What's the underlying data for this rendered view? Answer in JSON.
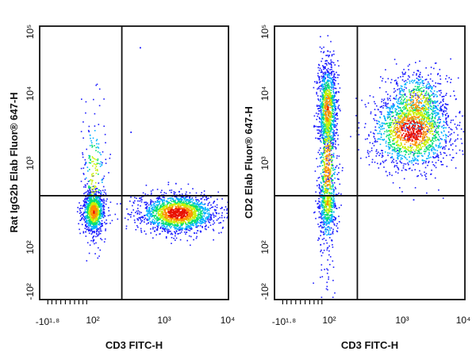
{
  "chart_data": [
    {
      "type": "scatter",
      "xlabel": "CD3 FITC-H",
      "ylabel": "Rat IgG2b Elab Fluor® 647-H",
      "x_scale": "biexponential",
      "y_scale": "biexponential",
      "x_tick_labels": [
        "-10¹·⁸",
        "10²",
        "10³",
        "10⁴"
      ],
      "y_tick_labels": [
        "-10²",
        "10²",
        "10³",
        "10⁴",
        "10⁵"
      ],
      "x_gate": 220,
      "y_gate": 150,
      "density_coloring": true,
      "colormap": [
        "#1a1aff",
        "#00b0ff",
        "#00e070",
        "#c8f000",
        "#ff9000",
        "#e81000"
      ],
      "populations": [
        {
          "x_center": 70,
          "y_center": 75,
          "x_spread": 0.06,
          "y_spread": 0.08,
          "count": 900
        },
        {
          "x_center": 70,
          "y_center": 320,
          "x_spread": 0.06,
          "y_spread": 0.25,
          "count": 220
        },
        {
          "x_center": 1600,
          "y_center": 70,
          "x_spread": 0.2,
          "y_spread": 0.07,
          "count": 1800
        }
      ],
      "outliers": [
        [
          420,
          45000
        ],
        [
          300,
          1800
        ],
        [
          1500,
          250
        ]
      ]
    },
    {
      "type": "scatter",
      "xlabel": "CD3 FITC-H",
      "ylabel": "CD2 Elab Fluor® 647-H",
      "x_scale": "biexponential",
      "y_scale": "biexponential",
      "x_tick_labels": [
        "-10¹·⁸",
        "10²",
        "10³",
        "10⁴"
      ],
      "y_tick_labels": [
        "-10²",
        "10²",
        "10³",
        "10⁴",
        "10⁵"
      ],
      "x_gate": 220,
      "y_gate": 150,
      "density_coloring": true,
      "colormap": [
        "#1a1aff",
        "#00b0ff",
        "#00e070",
        "#c8f000",
        "#ff9000",
        "#e81000"
      ],
      "populations": [
        {
          "x_center": 65,
          "y_center": 4500,
          "x_spread": 0.05,
          "y_spread": 0.16,
          "count": 900
        },
        {
          "x_center": 65,
          "y_center": 500,
          "x_spread": 0.05,
          "y_spread": 0.35,
          "count": 700
        },
        {
          "x_center": 65,
          "y_center": 110,
          "x_spread": 0.05,
          "y_spread": 0.1,
          "count": 350
        },
        {
          "x_center": 1500,
          "y_center": 1900,
          "x_spread": 0.22,
          "y_spread": 0.14,
          "count": 1500
        },
        {
          "x_center": 1800,
          "y_center": 5200,
          "x_spread": 0.16,
          "y_spread": 0.12,
          "count": 600
        }
      ],
      "outliers": [
        [
          600,
          400
        ],
        [
          1600,
          130
        ],
        [
          2500,
          300
        ],
        [
          900,
          900
        ]
      ]
    }
  ]
}
